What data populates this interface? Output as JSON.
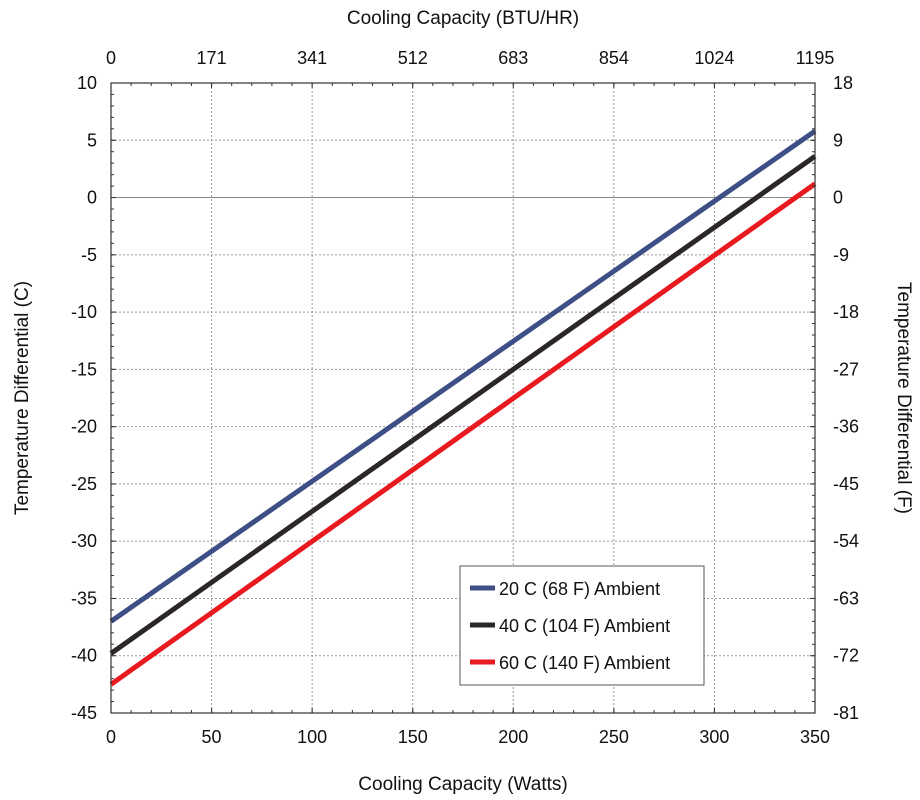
{
  "chart_data": {
    "type": "line",
    "xlabel": "Cooling Capacity (Watts)",
    "x2label": "Cooling Capacity (BTU/HR)",
    "ylabel": "Temperature Differential (C)",
    "y2label": "Temperature Differential (F)",
    "xlim": [
      0,
      350
    ],
    "ylim": [
      -45,
      10
    ],
    "y2lim": [
      -81,
      18
    ],
    "grid": true,
    "legend_position": "bottom-right",
    "x_ticks": [
      "0",
      "50",
      "100",
      "150",
      "200",
      "250",
      "300",
      "350"
    ],
    "x2_ticks": [
      "0",
      "171",
      "341",
      "512",
      "683",
      "854",
      "1024",
      "1195"
    ],
    "y_ticks": [
      "10",
      "5",
      "0",
      "-5",
      "-10",
      "-15",
      "-20",
      "-25",
      "-30",
      "-35",
      "-40",
      "-45"
    ],
    "y2_ticks": [
      "18",
      "9",
      "0",
      "-9",
      "-18",
      "-27",
      "-36",
      "-45",
      "-54",
      "-63",
      "-72",
      "-81"
    ],
    "series": [
      {
        "name": "20 C (68 F) Ambient",
        "color": "#3d4f84",
        "x": [
          0,
          350
        ],
        "y": [
          -37,
          5.8
        ]
      },
      {
        "name": "40 C (104 F) Ambient",
        "color": "#2b2727",
        "x": [
          0,
          350
        ],
        "y": [
          -39.8,
          3.6
        ]
      },
      {
        "name": "60 C (140 F) Ambient",
        "color": "#e8191f",
        "x": [
          0,
          350
        ],
        "y": [
          -42.5,
          1.2
        ]
      }
    ]
  }
}
